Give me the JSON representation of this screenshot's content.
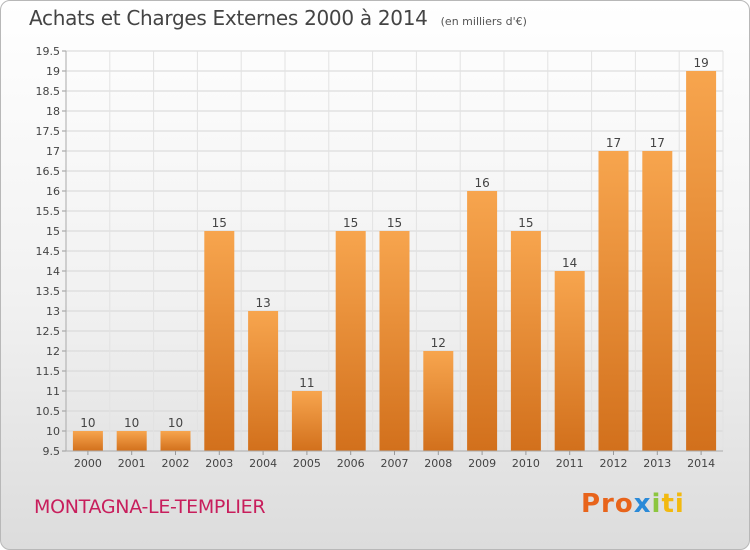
{
  "header": {
    "title": "Achats et Charges Externes 2000 à 2014",
    "subtitle": "(en milliers d'€)"
  },
  "footer": {
    "commune": "MONTAGNA-LE-TEMPLIER",
    "logo": [
      "Pro",
      "x",
      "i",
      "ti"
    ]
  },
  "colors": {
    "bar_top": "#f7a54e",
    "bar_bottom": "#d2701c",
    "commune": "#c81e5c"
  },
  "chart_data": {
    "type": "bar",
    "title": "Achats et Charges Externes 2000 à 2014",
    "subtitle": "(en milliers d'€)",
    "xlabel": "",
    "ylabel": "",
    "categories": [
      "2000",
      "2001",
      "2002",
      "2003",
      "2004",
      "2005",
      "2006",
      "2007",
      "2008",
      "2009",
      "2010",
      "2011",
      "2012",
      "2013",
      "2014"
    ],
    "values": [
      10,
      10,
      10,
      15,
      13,
      11,
      15,
      15,
      12,
      16,
      15,
      14,
      17,
      17,
      19
    ],
    "ylim": [
      9.5,
      19.5
    ],
    "yticks": [
      "9.5",
      "10",
      "10.5",
      "11",
      "11.5",
      "12",
      "12.5",
      "13",
      "13.5",
      "14",
      "14.5",
      "15",
      "15.5",
      "16",
      "16.5",
      "17",
      "17.5",
      "18",
      "18.5",
      "19",
      "19.5"
    ],
    "grid": true,
    "legend": "none"
  }
}
